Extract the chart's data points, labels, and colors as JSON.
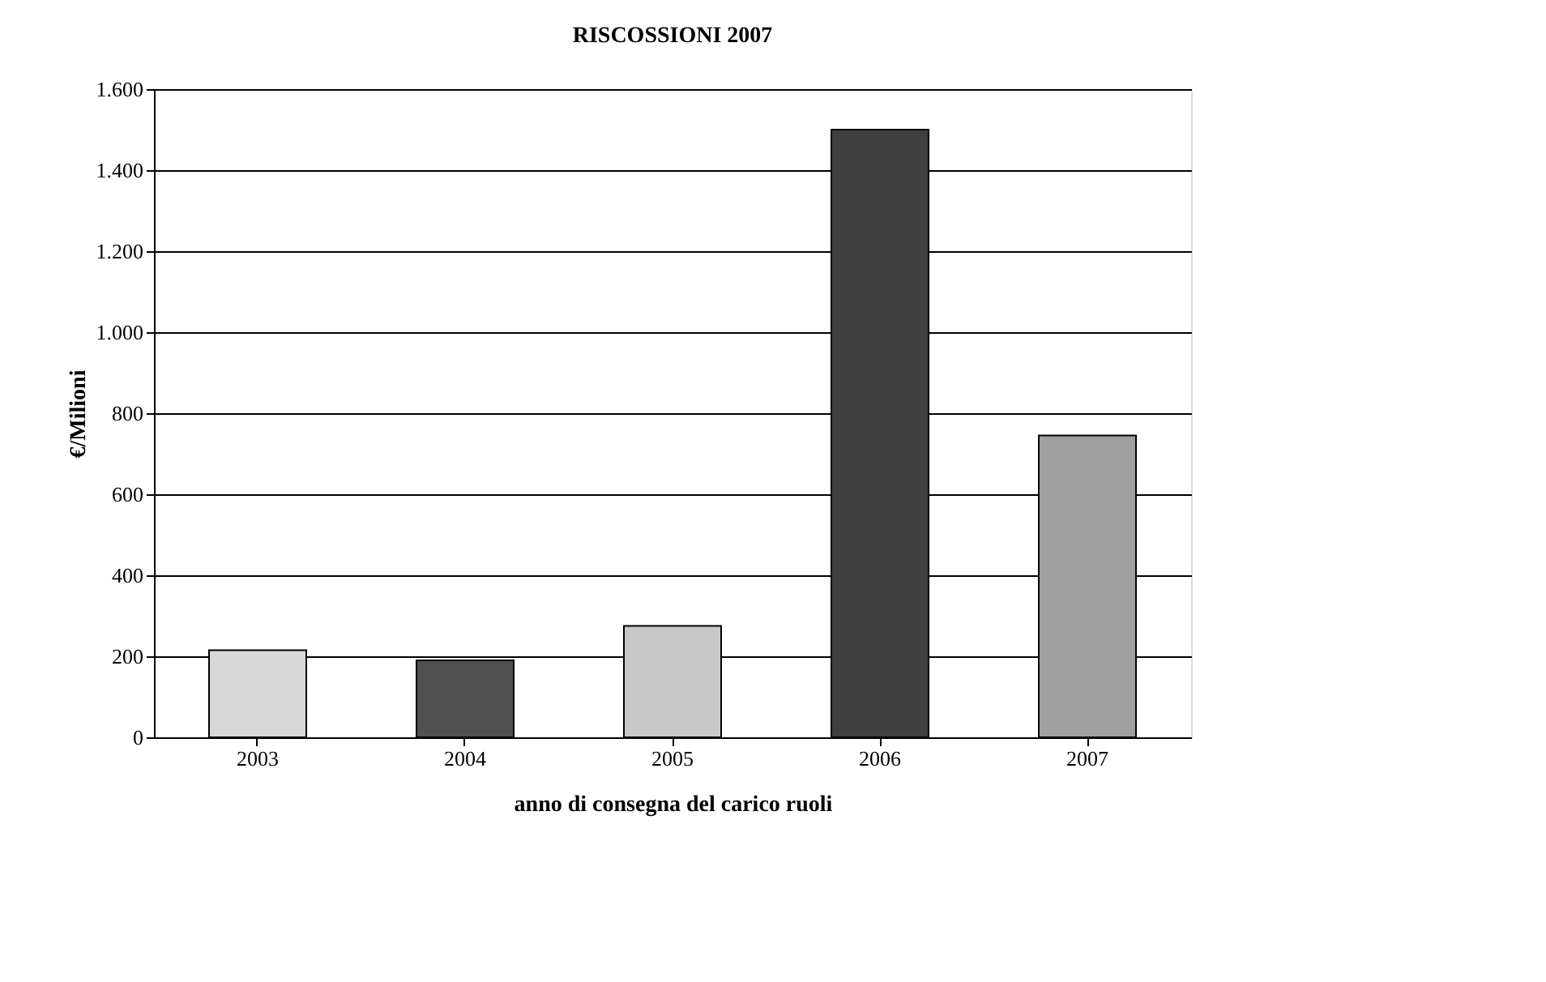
{
  "chart_data": {
    "type": "bar",
    "title": "RISCOSSIONI 2007",
    "xlabel": "anno di consegna del carico ruoli",
    "ylabel": "€/Milioni",
    "categories": [
      "2003",
      "2004",
      "2005",
      "2006",
      "2007"
    ],
    "values": [
      215,
      190,
      275,
      1500,
      745
    ],
    "colors": [
      "#d8d8d8",
      "#505050",
      "#c8c8c8",
      "#404040",
      "#a0a0a0"
    ],
    "ylim": [
      0,
      1600
    ],
    "yticks": [
      0,
      {
        "value": 200,
        "label": "200"
      },
      {
        "value": 400,
        "label": "400"
      },
      {
        "value": 600,
        "label": "600"
      },
      {
        "value": 800,
        "label": "800"
      },
      {
        "value": 1000,
        "label": "1.000"
      },
      {
        "value": 1200,
        "label": "1.200"
      },
      {
        "value": 1400,
        "label": "1.400"
      },
      {
        "value": 1600,
        "label": "1.600"
      }
    ],
    "grid": "y"
  }
}
